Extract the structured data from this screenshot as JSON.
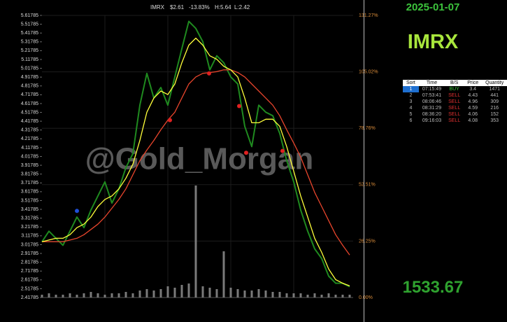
{
  "chart_data": {
    "type": "line",
    "symbol": "IMRX",
    "last": "$2.61",
    "change": "-13.83%",
    "high": "H:5.64",
    "low": "L:2.42",
    "watermark": "@Gold_Morgan",
    "ylim": [
      2.41785,
      5.61785
    ],
    "yticks": [
      2.41785,
      2.51785,
      2.61785,
      2.71785,
      2.81785,
      2.91785,
      3.01785,
      3.11785,
      3.21785,
      3.31785,
      3.41785,
      3.51785,
      3.61785,
      3.71785,
      3.81785,
      3.91785,
      4.01785,
      4.11785,
      4.21785,
      4.31785,
      4.41785,
      4.51785,
      4.61785,
      4.71785,
      4.81785,
      4.91785,
      5.01785,
      5.11785,
      5.21785,
      5.31785,
      5.41785,
      5.51785,
      5.61785
    ],
    "y2lim": [
      0,
      131.27
    ],
    "y2ticks": [
      {
        "value": 0,
        "label": "0.00%"
      },
      {
        "value": 26.25,
        "label": "26.25%"
      },
      {
        "value": 52.51,
        "label": "52.51%"
      },
      {
        "value": 78.76,
        "label": "78.76%"
      },
      {
        "value": 105.02,
        "label": "105.02%"
      },
      {
        "value": 131.27,
        "label": "131.27%"
      }
    ],
    "grid": true,
    "price": {
      "color": "#1f8a1f",
      "values": [
        3.05,
        3.17,
        3.09,
        3.01,
        3.17,
        3.33,
        3.21,
        3.41,
        3.57,
        3.73,
        3.49,
        3.65,
        3.89,
        4.05,
        4.6,
        4.96,
        4.68,
        4.8,
        4.6,
        4.92,
        5.24,
        5.55,
        5.47,
        5.32,
        5.0,
        5.16,
        5.08,
        4.92,
        4.84,
        4.36,
        4.13,
        4.6,
        4.52,
        4.48,
        4.28,
        3.97,
        3.73,
        3.41,
        3.17,
        2.97,
        2.86,
        2.66,
        2.58,
        2.58,
        2.54
      ]
    },
    "ma_fast": {
      "color": "#ffff3a",
      "values": [
        3.05,
        3.07,
        3.09,
        3.09,
        3.13,
        3.21,
        3.25,
        3.33,
        3.45,
        3.53,
        3.57,
        3.65,
        3.77,
        3.93,
        4.2,
        4.52,
        4.68,
        4.76,
        4.72,
        4.84,
        5.08,
        5.28,
        5.36,
        5.28,
        5.16,
        5.12,
        5.04,
        5.0,
        4.92,
        4.68,
        4.4,
        4.4,
        4.44,
        4.44,
        4.36,
        4.13,
        3.85,
        3.57,
        3.33,
        3.09,
        2.93,
        2.74,
        2.62,
        2.58,
        2.55
      ]
    },
    "ma_slow": {
      "color": "#e8452c",
      "values": [
        3.05,
        3.05,
        3.05,
        3.05,
        3.07,
        3.09,
        3.13,
        3.19,
        3.25,
        3.33,
        3.43,
        3.53,
        3.65,
        3.81,
        3.97,
        4.09,
        4.2,
        4.32,
        4.43,
        4.52,
        4.68,
        4.84,
        4.92,
        4.96,
        4.97,
        4.98,
        5.0,
        5.0,
        4.97,
        4.92,
        4.84,
        4.76,
        4.68,
        4.6,
        4.48,
        4.32,
        4.17,
        4.01,
        3.81,
        3.61,
        3.45,
        3.29,
        3.13,
        3.01,
        2.9
      ]
    },
    "volume": {
      "color": "#7a7a7a",
      "lim": [
        0,
        100
      ],
      "values": [
        2,
        3,
        2,
        2,
        3,
        2,
        3,
        4,
        3,
        2,
        3,
        3,
        4,
        3,
        5,
        6,
        5,
        6,
        8,
        7,
        9,
        10,
        80,
        8,
        7,
        6,
        33,
        7,
        6,
        5,
        5,
        6,
        5,
        4,
        4,
        3,
        3,
        3,
        2,
        3,
        2,
        3,
        2,
        2,
        2
      ]
    },
    "markers": [
      {
        "index": 5,
        "value": 3.4,
        "color": "#1f4fd8"
      },
      {
        "index": 18.3,
        "value": 4.43,
        "color": "#e02020"
      },
      {
        "index": 23.9,
        "value": 4.96,
        "color": "#e02020"
      },
      {
        "index": 28.2,
        "value": 4.59,
        "color": "#e02020"
      },
      {
        "index": 29.2,
        "value": 4.06,
        "color": "#e02020"
      },
      {
        "index": 34.4,
        "value": 4.08,
        "color": "#e02020"
      }
    ]
  },
  "panel": {
    "date": "2025-01-07",
    "symbol": "IMRX",
    "table": {
      "header": [
        "Sort",
        "Time",
        "B/S",
        "Price",
        "Quantity"
      ],
      "rows": [
        [
          "1",
          "07:15:49",
          "BUY",
          "3.4",
          "1471"
        ],
        [
          "2",
          "07:53:41",
          "SELL",
          "4.43",
          "441"
        ],
        [
          "3",
          "08:06:46",
          "SELL",
          "4.96",
          "309"
        ],
        [
          "4",
          "08:31:29",
          "SELL",
          "4.59",
          "216"
        ],
        [
          "5",
          "08:36:20",
          "SELL",
          "4.06",
          "152"
        ],
        [
          "6",
          "09:16:03",
          "SELL",
          "4.08",
          "353"
        ]
      ]
    },
    "total": "1533.67"
  }
}
